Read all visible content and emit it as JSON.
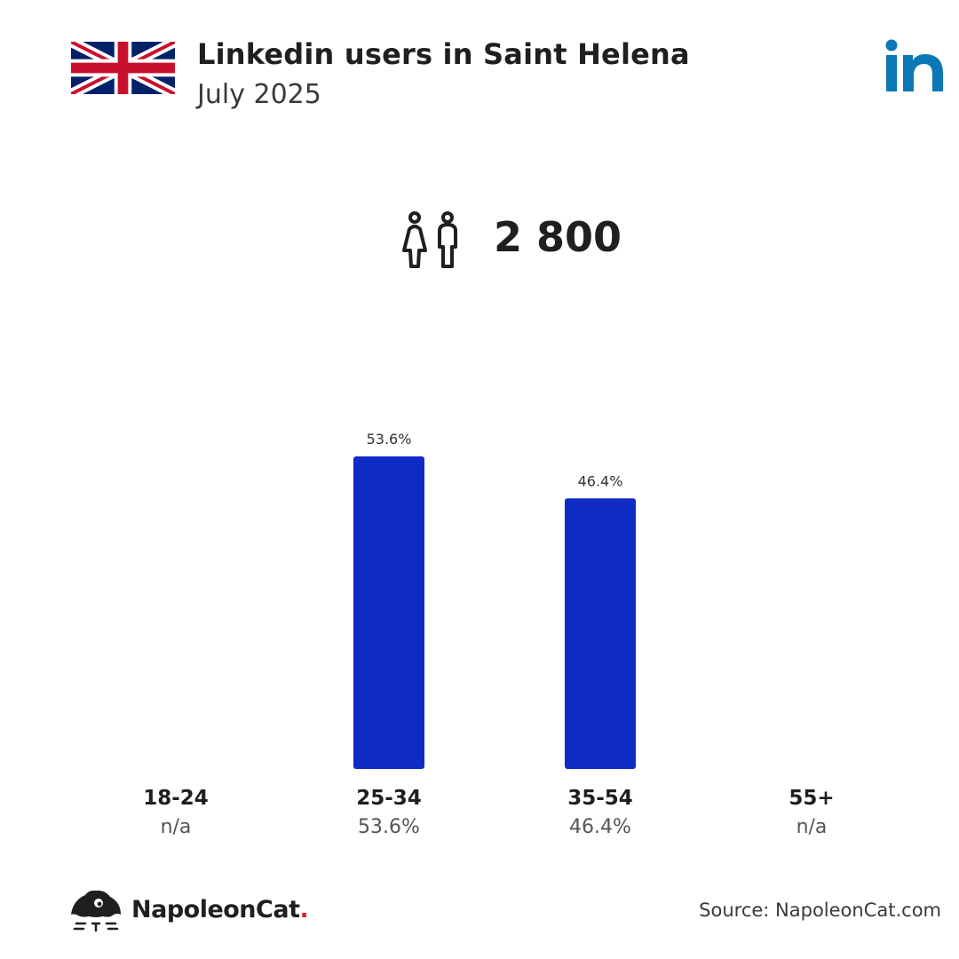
{
  "header": {
    "title": "Linkedin users in Saint Helena",
    "subtitle": "July 2025"
  },
  "icons": {
    "flag": "united-kingdom-flag",
    "platform": "linkedin-icon",
    "users": "users-male-female-icon",
    "brand": "napoleoncat-logo"
  },
  "summary": {
    "total_users": "2 800"
  },
  "chart_data": {
    "type": "bar",
    "categories": [
      "18-24",
      "25-34",
      "35-54",
      "55+"
    ],
    "values": [
      null,
      53.6,
      46.4,
      null
    ],
    "bar_labels": [
      "",
      "53.6%",
      "46.4%",
      ""
    ],
    "value_labels": [
      "n/a",
      "53.6%",
      "46.4%",
      "n/a"
    ],
    "title": "",
    "xlabel": "",
    "ylabel": "",
    "ylim": [
      0,
      53.6
    ],
    "grid": false,
    "bar_color": "#0f2bc6"
  },
  "footer": {
    "brand_name": "NapoleonCat",
    "brand_dot": ".",
    "source": "Source: NapoleonCat.com"
  },
  "colors": {
    "bar": "#0f2bc6",
    "linkedin": "#0a78b5",
    "brand_dot": "#e4252f"
  }
}
